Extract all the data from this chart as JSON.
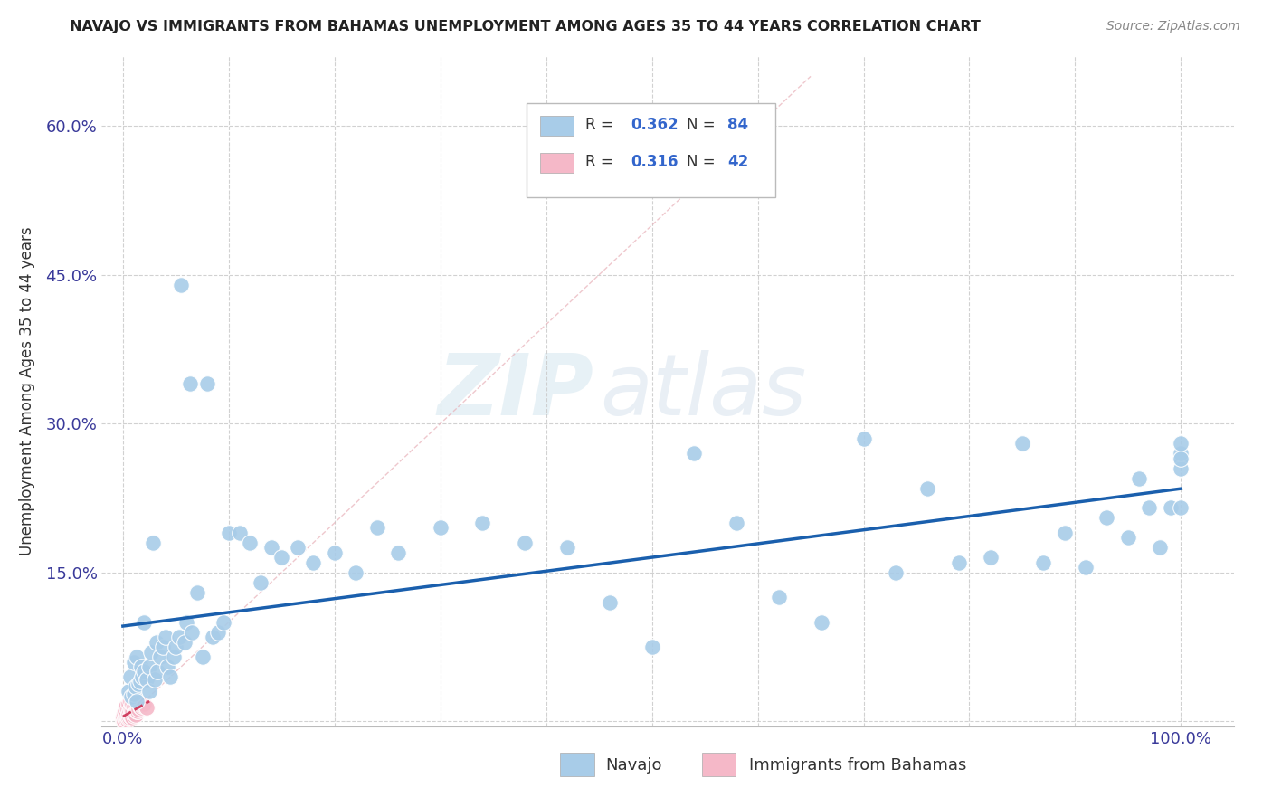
{
  "title": "NAVAJO VS IMMIGRANTS FROM BAHAMAS UNEMPLOYMENT AMONG AGES 35 TO 44 YEARS CORRELATION CHART",
  "source": "Source: ZipAtlas.com",
  "ylabel": "Unemployment Among Ages 35 to 44 years",
  "xlim": [
    -0.02,
    1.05
  ],
  "ylim": [
    -0.005,
    0.67
  ],
  "navajo_R": 0.362,
  "navajo_N": 84,
  "bahamas_R": 0.316,
  "bahamas_N": 42,
  "navajo_color": "#a8cce8",
  "bahamas_color": "#f5b8c8",
  "navajo_line_color": "#1a5fad",
  "bahamas_line_color": "#d04060",
  "watermark_zip": "ZIP",
  "watermark_atlas": "atlas",
  "nav_x": [
    0.005,
    0.007,
    0.008,
    0.01,
    0.01,
    0.012,
    0.013,
    0.013,
    0.015,
    0.016,
    0.017,
    0.018,
    0.02,
    0.02,
    0.022,
    0.025,
    0.025,
    0.027,
    0.028,
    0.03,
    0.032,
    0.033,
    0.035,
    0.038,
    0.04,
    0.042,
    0.045,
    0.048,
    0.05,
    0.053,
    0.055,
    0.058,
    0.06,
    0.063,
    0.065,
    0.07,
    0.075,
    0.08,
    0.085,
    0.09,
    0.095,
    0.1,
    0.11,
    0.12,
    0.13,
    0.14,
    0.15,
    0.165,
    0.18,
    0.2,
    0.22,
    0.24,
    0.26,
    0.3,
    0.34,
    0.38,
    0.42,
    0.46,
    0.5,
    0.54,
    0.58,
    0.62,
    0.66,
    0.7,
    0.73,
    0.76,
    0.79,
    0.82,
    0.85,
    0.87,
    0.89,
    0.91,
    0.93,
    0.95,
    0.96,
    0.97,
    0.98,
    0.99,
    1.0,
    1.0,
    1.0,
    1.0,
    1.0,
    1.0
  ],
  "nav_y": [
    0.03,
    0.045,
    0.025,
    0.028,
    0.06,
    0.035,
    0.02,
    0.065,
    0.038,
    0.04,
    0.055,
    0.045,
    0.05,
    0.1,
    0.042,
    0.03,
    0.055,
    0.07,
    0.18,
    0.042,
    0.08,
    0.05,
    0.065,
    0.075,
    0.085,
    0.055,
    0.045,
    0.065,
    0.075,
    0.085,
    0.44,
    0.08,
    0.1,
    0.34,
    0.09,
    0.13,
    0.065,
    0.34,
    0.085,
    0.09,
    0.1,
    0.19,
    0.19,
    0.18,
    0.14,
    0.175,
    0.165,
    0.175,
    0.16,
    0.17,
    0.15,
    0.195,
    0.17,
    0.195,
    0.2,
    0.18,
    0.175,
    0.12,
    0.075,
    0.27,
    0.2,
    0.125,
    0.1,
    0.285,
    0.15,
    0.235,
    0.16,
    0.165,
    0.28,
    0.16,
    0.19,
    0.155,
    0.205,
    0.185,
    0.245,
    0.215,
    0.175,
    0.215,
    0.265,
    0.255,
    0.215,
    0.27,
    0.28,
    0.265
  ],
  "bah_x": [
    0.0,
    0.0,
    0.0,
    0.001,
    0.001,
    0.002,
    0.002,
    0.003,
    0.003,
    0.003,
    0.004,
    0.004,
    0.004,
    0.005,
    0.005,
    0.005,
    0.006,
    0.006,
    0.007,
    0.007,
    0.007,
    0.008,
    0.008,
    0.009,
    0.009,
    0.009,
    0.01,
    0.01,
    0.011,
    0.011,
    0.012,
    0.012,
    0.013,
    0.013,
    0.014,
    0.015,
    0.016,
    0.017,
    0.018,
    0.019,
    0.02,
    0.022
  ],
  "bah_y": [
    0.0,
    0.002,
    0.005,
    0.0,
    0.008,
    0.003,
    0.01,
    0.002,
    0.007,
    0.015,
    0.001,
    0.005,
    0.012,
    0.003,
    0.008,
    0.018,
    0.004,
    0.01,
    0.006,
    0.013,
    0.02,
    0.005,
    0.011,
    0.004,
    0.01,
    0.018,
    0.006,
    0.015,
    0.008,
    0.02,
    0.007,
    0.016,
    0.01,
    0.022,
    0.01,
    0.012,
    0.015,
    0.014,
    0.016,
    0.017,
    0.018,
    0.014
  ],
  "nav_line_x": [
    0.0,
    1.0
  ],
  "nav_line_y": [
    0.065,
    0.255
  ],
  "bah_line_x": [
    0.0,
    0.022
  ],
  "bah_line_y": [
    0.002,
    0.018
  ],
  "diag_line_x": [
    0.0,
    0.65
  ],
  "diag_line_y": [
    0.0,
    0.65
  ]
}
